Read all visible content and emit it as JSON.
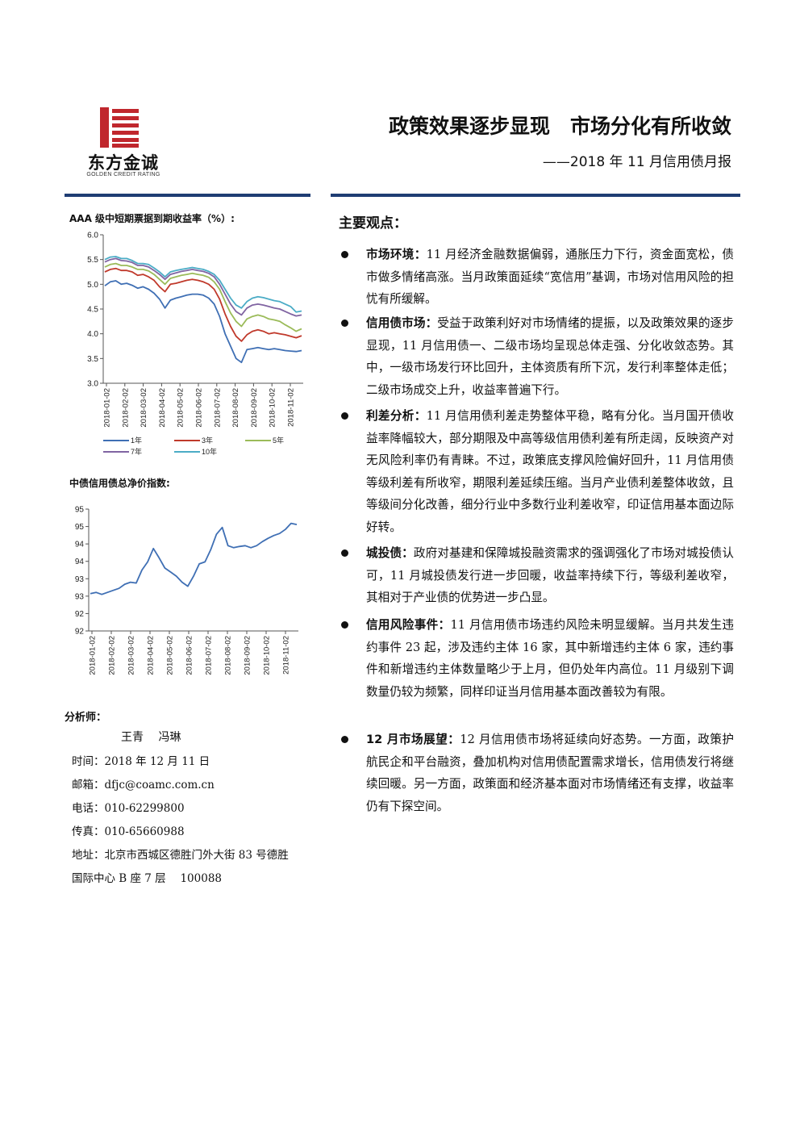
{
  "header": {
    "logo_cn": "东方金诚",
    "logo_en": "GOLDEN CREDIT RATING",
    "title": "政策效果逐步显现　市场分化有所收敛",
    "subtitle": "——2018 年 11 月信用债月报",
    "logo_color": "#c0272d",
    "rule_color": "#1f3d73"
  },
  "chart1_title": "AAA 级中短期票据到期收益率（%）:",
  "chart2_title": "中债信用债总净价指数:",
  "chart_data": [
    {
      "type": "line",
      "title": "AAA 级中短期票据到期收益率（%）:",
      "ylim": [
        3.0,
        6.0
      ],
      "yticks": [
        "3.0",
        "3.5",
        "4.0",
        "4.5",
        "5.0",
        "5.5",
        "6.0"
      ],
      "xticks": [
        "2018-01-02",
        "2018-02-02",
        "2018-03-02",
        "2018-04-02",
        "2018-05-02",
        "2018-06-02",
        "2018-07-02",
        "2018-08-02",
        "2018-09-02",
        "2018-10-02",
        "2018-11-02"
      ],
      "legend_position": "bottom",
      "series": [
        {
          "name": "1年",
          "color": "#3f6fb4",
          "values": [
            4.97,
            5.05,
            5.07,
            5.0,
            5.02,
            4.98,
            4.92,
            4.95,
            4.9,
            4.82,
            4.7,
            4.52,
            4.68,
            4.72,
            4.75,
            4.78,
            4.8,
            4.8,
            4.78,
            4.72,
            4.6,
            4.35,
            4.0,
            3.75,
            3.5,
            3.42,
            3.68,
            3.7,
            3.72,
            3.7,
            3.68,
            3.7,
            3.68,
            3.66,
            3.65,
            3.64,
            3.66
          ]
        },
        {
          "name": "3年",
          "color": "#c0392b",
          "values": [
            5.25,
            5.3,
            5.32,
            5.28,
            5.28,
            5.25,
            5.18,
            5.2,
            5.15,
            5.08,
            4.95,
            4.85,
            5.0,
            5.02,
            5.05,
            5.08,
            5.1,
            5.08,
            5.05,
            5.0,
            4.9,
            4.7,
            4.4,
            4.15,
            3.95,
            3.85,
            3.98,
            4.05,
            4.08,
            4.05,
            4.0,
            4.02,
            4.0,
            3.98,
            3.95,
            3.92,
            3.96
          ]
        },
        {
          "name": "5年",
          "color": "#9bbb59",
          "values": [
            5.35,
            5.4,
            5.42,
            5.38,
            5.38,
            5.35,
            5.3,
            5.3,
            5.27,
            5.2,
            5.1,
            5.0,
            5.12,
            5.15,
            5.18,
            5.2,
            5.22,
            5.2,
            5.18,
            5.14,
            5.05,
            4.9,
            4.65,
            4.42,
            4.25,
            4.15,
            4.3,
            4.35,
            4.38,
            4.35,
            4.3,
            4.28,
            4.25,
            4.18,
            4.12,
            4.05,
            4.1
          ]
        },
        {
          "name": "7年",
          "color": "#8064a2",
          "values": [
            5.45,
            5.5,
            5.52,
            5.48,
            5.47,
            5.44,
            5.38,
            5.38,
            5.35,
            5.28,
            5.2,
            5.1,
            5.2,
            5.23,
            5.26,
            5.28,
            5.3,
            5.28,
            5.26,
            5.22,
            5.15,
            5.0,
            4.8,
            4.6,
            4.45,
            4.38,
            4.52,
            4.58,
            4.6,
            4.58,
            4.55,
            4.52,
            4.5,
            4.45,
            4.4,
            4.36,
            4.38
          ]
        },
        {
          "name": "10年",
          "color": "#4bacc6",
          "values": [
            5.5,
            5.55,
            5.56,
            5.52,
            5.52,
            5.48,
            5.42,
            5.42,
            5.4,
            5.33,
            5.25,
            5.15,
            5.25,
            5.28,
            5.3,
            5.32,
            5.34,
            5.32,
            5.3,
            5.26,
            5.2,
            5.08,
            4.9,
            4.72,
            4.58,
            4.52,
            4.65,
            4.72,
            4.75,
            4.73,
            4.7,
            4.67,
            4.65,
            4.6,
            4.55,
            4.44,
            4.46
          ]
        }
      ]
    },
    {
      "type": "line",
      "title": "中债信用债总净价指数:",
      "ylim": [
        92,
        95
      ],
      "yticks": [
        "92",
        "92",
        "93",
        "93",
        "94",
        "94",
        "95",
        "95"
      ],
      "xticks": [
        "2018-01-02",
        "2018-02-02",
        "2018-03-02",
        "2018-04-02",
        "2018-05-02",
        "2018-06-02",
        "2018-07-02",
        "2018-08-02",
        "2018-09-02",
        "2018-10-02",
        "2018-11-02"
      ],
      "series": [
        {
          "name": "",
          "color": "#3f6fb4",
          "values": [
            92.92,
            92.95,
            92.9,
            92.95,
            93.0,
            93.05,
            93.15,
            93.2,
            93.18,
            93.5,
            93.7,
            94.03,
            93.8,
            93.55,
            93.45,
            93.35,
            93.2,
            93.1,
            93.35,
            93.65,
            93.7,
            94.0,
            94.38,
            94.55,
            94.1,
            94.05,
            94.08,
            94.1,
            94.05,
            94.1,
            94.2,
            94.28,
            94.35,
            94.4,
            94.5,
            94.65,
            94.62
          ]
        }
      ]
    }
  ],
  "analyst": {
    "label": "分析师：",
    "names": "王青　 冯琳",
    "time": "时间：2018 年 12 月 11 日",
    "email_label": "邮箱：",
    "email": "dfjc@coamc.com.cn",
    "phone": "电话：010-62299800",
    "fax": "传真：010-65660988",
    "address_line1": "地址：北京市西城区德胜门外大街 83 号德胜",
    "address_line2": "国际中心 B 座 7 层　 100088"
  },
  "points_title": "主要观点：",
  "points": [
    {
      "label": "市场环境：",
      "text": "11 月经济金融数据偏弱，通胀压力下行，资金面宽松，债市做多情绪高涨。当月政策面延续“宽信用”基调，市场对信用风险的担忧有所缓解。"
    },
    {
      "label": "信用债市场：",
      "text": "受益于政策利好对市场情绪的提振，以及政策效果的逐步显现，11 月信用债一、二级市场均呈现总体走强、分化收敛态势。其中，一级市场发行环比回升，主体资质有所下沉，发行利率整体走低；二级市场成交上升，收益率普遍下行。"
    },
    {
      "label": "利差分析：",
      "text": "11 月信用债利差走势整体平稳，略有分化。当月国开债收益率降幅较大，部分期限及中高等级信用债利差有所走阔，反映资产对无风险利率仍有青睐。不过，政策底支撑风险偏好回升，11 月信用债等级利差有所收窄，期限利差延续压缩。当月产业债利差整体收敛，且等级间分化改善，细分行业中多数行业利差收窄，印证信用基本面边际好转。"
    },
    {
      "label": "城投债：",
      "text": "政府对基建和保障城投融资需求的强调强化了市场对城投债认可，11 月城投债发行进一步回暖，收益率持续下行，等级利差收窄，其相对于产业债的优势进一步凸显。"
    },
    {
      "label": "信用风险事件：",
      "text": "11 月信用债市场违约风险未明显缓解。当月共发生违约事件 23 起，涉及违约主体 16 家，其中新增违约主体 6 家，违约事件和新增违约主体数量略少于上月，但仍处年内高位。11 月级别下调数量仍较为频繁，同样印证当月信用基本面改善较为有限。"
    },
    {
      "label": "12 月市场展望：",
      "text": "12 月信用债市场将延续向好态势。一方面，政策护航民企和平台融资，叠加机构对信用债配置需求增长，信用债发行将继续回暖。另一方面，政策面和经济基本面对市场情绪还有支撑，收益率仍有下探空间。"
    }
  ]
}
